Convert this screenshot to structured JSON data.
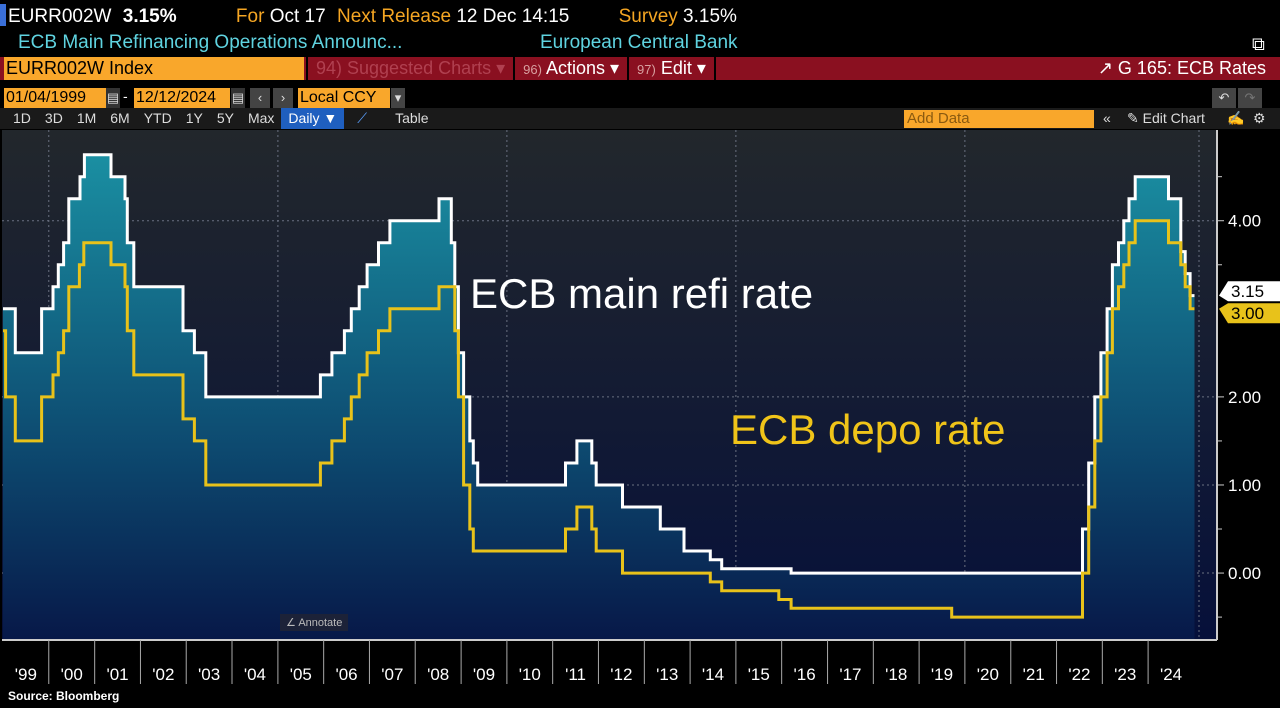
{
  "header": {
    "ticker": "EURR002W",
    "value": "3.15%",
    "for_label": "For",
    "for_value": "Oct 17",
    "next_label": "Next Release",
    "next_value": "12 Dec 14:15",
    "survey_label": "Survey",
    "survey_value": "3.15%",
    "description": "ECB Main Refinancing Operations Announc...",
    "source_org": "European Central Bank"
  },
  "toolbar": {
    "security": "EURR002W Index",
    "suggested": "94) Suggested Charts",
    "actions_num": "96)",
    "actions": "Actions",
    "edit_num": "97)",
    "edit": "Edit",
    "chart_title": "G 165: ECB Rates",
    "start_date": "01/04/1999",
    "end_date": "12/12/2024",
    "currency": "Local CCY",
    "ranges": [
      "1D",
      "3D",
      "1M",
      "6M",
      "YTD",
      "1Y",
      "5Y",
      "Max"
    ],
    "frequency": "Daily ▼",
    "table": "Table",
    "add_data_placeholder": "Add Data",
    "edit_chart": "Edit Chart",
    "annotate": "Annotate"
  },
  "colors": {
    "main_refi": "#ffffff",
    "depo": "#e8c21a",
    "accent": "#f9a72b",
    "menu_bar": "#8a1020"
  },
  "chart_data": {
    "type": "line",
    "step": true,
    "ylim": [
      -0.76,
      5.03
    ],
    "xlim": [
      "1999-01-01",
      "2025-01-01"
    ],
    "y_ticks": [
      "4.00",
      "2.00",
      "1.00",
      "0.00"
    ],
    "x_ticks": [
      "'99",
      "'00",
      "'01",
      "'02",
      "'03",
      "'04",
      "'05",
      "'06",
      "'07",
      "'08",
      "'09",
      "'10",
      "'11",
      "'12",
      "'13",
      "'14",
      "'15",
      "'16",
      "'17",
      "'18",
      "'19",
      "'20",
      "'21",
      "'22",
      "'23",
      "'24"
    ],
    "grid": true,
    "series": [
      {
        "name": "ECB main refi rate",
        "last_label": "3.15",
        "points": [
          [
            "1999-01-01",
            3.0
          ],
          [
            "1999-04-09",
            2.5
          ],
          [
            "1999-11-05",
            3.0
          ],
          [
            "2000-02-04",
            3.25
          ],
          [
            "2000-03-17",
            3.5
          ],
          [
            "2000-04-28",
            3.75
          ],
          [
            "2000-06-09",
            4.25
          ],
          [
            "2000-09-06",
            4.5
          ],
          [
            "2000-10-11",
            4.75
          ],
          [
            "2001-05-11",
            4.5
          ],
          [
            "2001-08-31",
            4.25
          ],
          [
            "2001-09-18",
            3.75
          ],
          [
            "2001-11-09",
            3.25
          ],
          [
            "2002-12-06",
            2.75
          ],
          [
            "2003-03-07",
            2.5
          ],
          [
            "2003-06-06",
            2.0
          ],
          [
            "2005-12-06",
            2.25
          ],
          [
            "2006-03-08",
            2.5
          ],
          [
            "2006-06-15",
            2.75
          ],
          [
            "2006-08-09",
            3.0
          ],
          [
            "2006-10-11",
            3.25
          ],
          [
            "2006-12-13",
            3.5
          ],
          [
            "2007-03-14",
            3.75
          ],
          [
            "2007-06-13",
            4.0
          ],
          [
            "2008-07-09",
            4.25
          ],
          [
            "2008-10-15",
            3.75
          ],
          [
            "2008-11-12",
            3.25
          ],
          [
            "2008-12-10",
            2.5
          ],
          [
            "2009-01-21",
            2.0
          ],
          [
            "2009-03-11",
            1.5
          ],
          [
            "2009-04-08",
            1.25
          ],
          [
            "2009-05-13",
            1.0
          ],
          [
            "2011-04-13",
            1.25
          ],
          [
            "2011-07-13",
            1.5
          ],
          [
            "2011-11-09",
            1.25
          ],
          [
            "2011-12-14",
            1.0
          ],
          [
            "2012-07-11",
            0.75
          ],
          [
            "2013-05-08",
            0.5
          ],
          [
            "2013-11-13",
            0.25
          ],
          [
            "2014-06-11",
            0.15
          ],
          [
            "2014-09-10",
            0.05
          ],
          [
            "2016-03-16",
            0.0
          ],
          [
            "2022-07-27",
            0.5
          ],
          [
            "2022-09-14",
            1.25
          ],
          [
            "2022-11-02",
            2.0
          ],
          [
            "2022-12-21",
            2.5
          ],
          [
            "2023-02-08",
            3.0
          ],
          [
            "2023-03-22",
            3.5
          ],
          [
            "2023-05-10",
            3.75
          ],
          [
            "2023-06-21",
            4.0
          ],
          [
            "2023-08-02",
            4.25
          ],
          [
            "2023-09-20",
            4.5
          ],
          [
            "2024-06-12",
            4.25
          ],
          [
            "2024-09-18",
            3.65
          ],
          [
            "2024-10-23",
            3.4
          ],
          [
            "2024-12-01",
            3.15
          ],
          [
            "2024-12-12",
            3.15
          ]
        ]
      },
      {
        "name": "ECB depo rate",
        "last_label": "3.00",
        "points": [
          [
            "1999-01-01",
            2.75
          ],
          [
            "1999-01-22",
            2.0
          ],
          [
            "1999-04-09",
            1.5
          ],
          [
            "1999-11-05",
            2.0
          ],
          [
            "2000-02-04",
            2.25
          ],
          [
            "2000-03-17",
            2.5
          ],
          [
            "2000-04-28",
            2.75
          ],
          [
            "2000-06-09",
            3.25
          ],
          [
            "2000-09-01",
            3.5
          ],
          [
            "2000-10-06",
            3.75
          ],
          [
            "2001-05-11",
            3.5
          ],
          [
            "2001-08-31",
            3.25
          ],
          [
            "2001-09-18",
            2.75
          ],
          [
            "2001-11-09",
            2.25
          ],
          [
            "2002-12-06",
            1.75
          ],
          [
            "2003-03-07",
            1.5
          ],
          [
            "2003-06-06",
            1.0
          ],
          [
            "2005-12-06",
            1.25
          ],
          [
            "2006-03-08",
            1.5
          ],
          [
            "2006-06-15",
            1.75
          ],
          [
            "2006-08-09",
            2.0
          ],
          [
            "2006-10-11",
            2.25
          ],
          [
            "2006-12-13",
            2.5
          ],
          [
            "2007-03-14",
            2.75
          ],
          [
            "2007-06-13",
            3.0
          ],
          [
            "2008-07-09",
            3.25
          ],
          [
            "2008-11-12",
            2.75
          ],
          [
            "2008-12-10",
            2.0
          ],
          [
            "2009-01-21",
            1.0
          ],
          [
            "2009-03-11",
            0.5
          ],
          [
            "2009-04-08",
            0.25
          ],
          [
            "2011-04-13",
            0.5
          ],
          [
            "2011-07-13",
            0.75
          ],
          [
            "2011-11-09",
            0.5
          ],
          [
            "2011-12-14",
            0.25
          ],
          [
            "2012-07-11",
            0.0
          ],
          [
            "2014-06-11",
            -0.1
          ],
          [
            "2014-09-10",
            -0.2
          ],
          [
            "2015-12-09",
            -0.3
          ],
          [
            "2016-03-16",
            -0.4
          ],
          [
            "2019-09-18",
            -0.5
          ],
          [
            "2022-07-27",
            0.0
          ],
          [
            "2022-09-14",
            0.75
          ],
          [
            "2022-11-02",
            1.5
          ],
          [
            "2022-12-21",
            2.0
          ],
          [
            "2023-02-08",
            2.5
          ],
          [
            "2023-03-22",
            3.0
          ],
          [
            "2023-05-10",
            3.25
          ],
          [
            "2023-06-21",
            3.5
          ],
          [
            "2023-08-02",
            3.75
          ],
          [
            "2023-09-20",
            4.0
          ],
          [
            "2024-06-12",
            3.75
          ],
          [
            "2024-09-18",
            3.5
          ],
          [
            "2024-10-23",
            3.25
          ],
          [
            "2024-12-01",
            3.0
          ],
          [
            "2024-12-12",
            3.0
          ]
        ]
      }
    ]
  },
  "footer": {
    "source": "Source: Bloomberg"
  }
}
